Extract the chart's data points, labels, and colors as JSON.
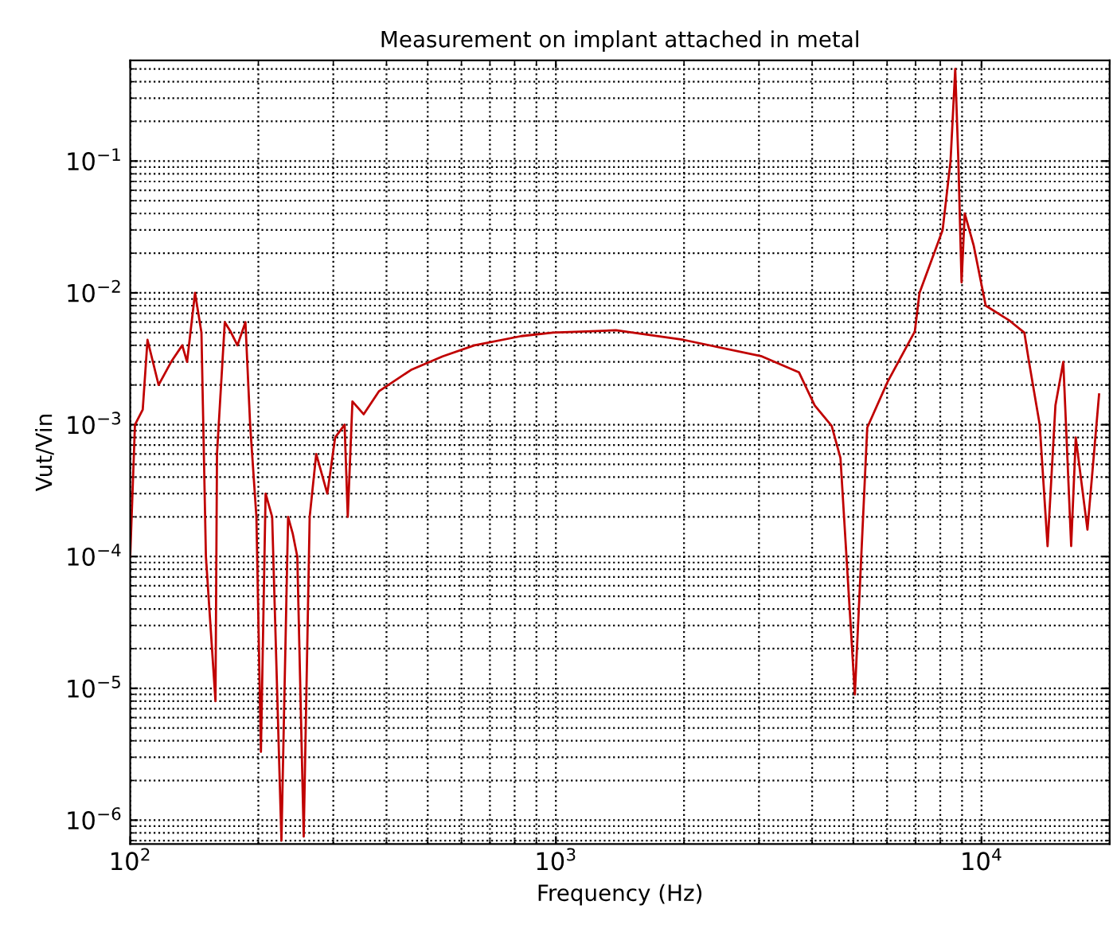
{
  "chart_data": {
    "type": "line",
    "title": "Measurement on implant attached in metal",
    "xlabel": "Frequency (Hz)",
    "ylabel": "Vut/Vin",
    "log": "xy",
    "grid": true,
    "marker": "none",
    "line_style": "solid",
    "xlim": [
      100,
      20000
    ],
    "ylim": [
      6.6e-07,
      0.58
    ],
    "xticks": [
      {
        "value": 100,
        "label": "10$^{2}$"
      },
      {
        "value": 1000,
        "label": "10$^{3}$"
      },
      {
        "value": 10000,
        "label": "10$^{4}$"
      }
    ],
    "yticks": [
      {
        "value": 1e-06,
        "label": "10$^{−6}$"
      },
      {
        "value": 1e-05,
        "label": "10$^{−5}$"
      },
      {
        "value": 0.0001,
        "label": "10$^{−4}$"
      },
      {
        "value": 0.001,
        "label": "10$^{−3}$"
      },
      {
        "value": 0.01,
        "label": "10$^{−2}$"
      },
      {
        "value": 0.1,
        "label": "10$^{−1}$"
      }
    ],
    "series": [
      {
        "color": "#c00000",
        "x": [
          100,
          102.6,
          107,
          109.8,
          116.6,
          124.8,
          132.5,
          136,
          142,
          147,
          150.6,
          158.6,
          159.9,
          166.8,
          172.6,
          178.6,
          186.5,
          191.3,
          197.9,
          202.8,
          208,
          215.5,
          226.6,
          234.9,
          240.8,
          246.9,
          255.6,
          264,
          273.5,
          290.4,
          303,
          318.9,
          324.4,
          332.7,
          353.5,
          384.4,
          456.6,
          541.9,
          643.4,
          829.4,
          984.6,
          1384,
          1995,
          3047,
          3724,
          4056,
          4446,
          4662,
          5040,
          5389,
          6010,
          6971,
          7150,
          8103,
          8457,
          8674,
          8823,
          8976,
          9131,
          9581,
          10229,
          11603,
          12606,
          12928,
          13699,
          14294,
          14915,
          15563,
          16240,
          16650,
          17735,
          18887
        ],
        "values": [
          0.0001,
          0.001,
          0.0013,
          0.0044,
          0.002,
          0.003,
          0.004,
          0.003,
          0.01,
          0.005,
          0.0001,
          8e-06,
          0.0006,
          0.006,
          0.005,
          0.004,
          0.006,
          0.001,
          0.0002,
          3.3e-06,
          0.0003,
          0.0002,
          7e-07,
          0.0002,
          0.00015,
          0.0001,
          7.5e-07,
          0.0002,
          0.0006,
          0.0003,
          0.0008,
          0.001,
          0.0002,
          0.0015,
          0.0012,
          0.0018,
          0.0026,
          0.0033,
          0.004,
          0.0047,
          0.005,
          0.0052,
          0.0044,
          0.0033,
          0.0025,
          0.0014,
          0.00098,
          0.00056,
          9e-06,
          0.00095,
          0.0021,
          0.0051,
          0.01,
          0.03,
          0.1,
          0.5,
          0.1,
          0.012,
          0.04,
          0.023,
          0.008,
          0.0062,
          0.005,
          0.003,
          0.001,
          0.00012,
          0.0014,
          0.003,
          0.00012,
          0.0008,
          0.00016,
          0.0017
        ]
      }
    ]
  }
}
